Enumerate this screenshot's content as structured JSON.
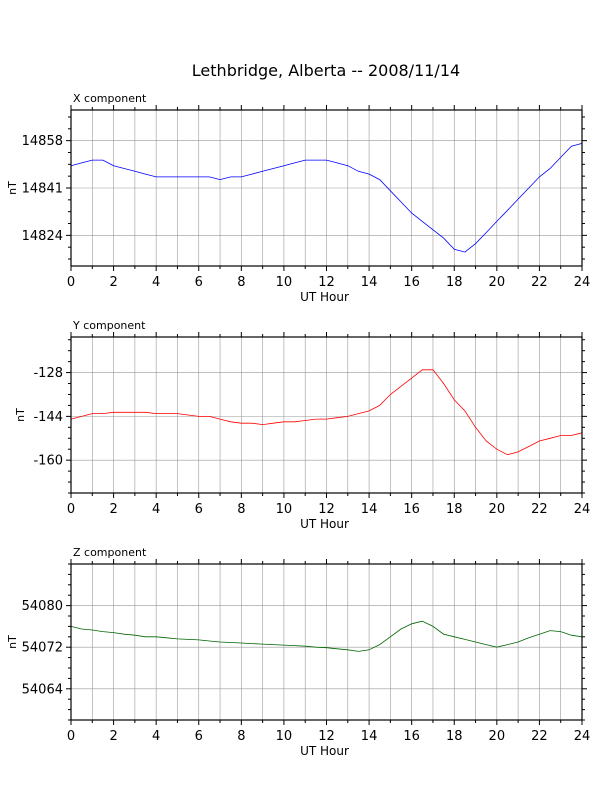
{
  "title": "Lethbridge, Alberta -- 2008/11/14",
  "colors": {
    "x": "#0000ff",
    "y": "#ff0000",
    "z": "#006400",
    "grid": "#999999",
    "axis": "#000000"
  },
  "chart_data": [
    {
      "type": "line",
      "title": "X component",
      "xlabel": "UT Hour",
      "ylabel": "nT",
      "xlim": [
        0,
        24
      ],
      "ylim": [
        14813,
        14869
      ],
      "xticks": [
        "0",
        "2",
        "4",
        "6",
        "8",
        "10",
        "12",
        "14",
        "16",
        "18",
        "20",
        "22",
        "24"
      ],
      "yticks": [
        14824,
        14841,
        14858
      ],
      "grid": true,
      "series": [
        {
          "x": [
            0,
            0.5,
            1,
            1.5,
            2,
            2.5,
            3,
            3.5,
            4,
            4.5,
            5,
            5.5,
            6,
            6.5,
            7,
            7.5,
            8,
            8.5,
            9,
            9.5,
            10,
            10.5,
            11,
            11.5,
            12,
            12.5,
            13,
            13.5,
            14,
            14.5,
            15,
            15.5,
            16,
            16.5,
            17,
            17.5,
            18,
            18.5,
            19,
            19.5,
            20,
            20.5,
            21,
            21.5,
            22,
            22.5,
            23,
            23.5,
            24
          ],
          "values": [
            14849,
            14850,
            14851,
            14851,
            14849,
            14848,
            14847,
            14846,
            14845,
            14845,
            14845,
            14845,
            14845,
            14845,
            14844,
            14845,
            14845,
            14846,
            14847,
            14848,
            14849,
            14850,
            14851,
            14851,
            14851,
            14850,
            14849,
            14847,
            14846,
            14844,
            14840,
            14836,
            14832,
            14829,
            14826,
            14823,
            14819,
            14818,
            14821,
            14825,
            14829,
            14833,
            14837,
            14841,
            14845,
            14848,
            14852,
            14856,
            14857
          ]
        }
      ]
    },
    {
      "type": "line",
      "title": "Y component",
      "xlabel": "UT Hour",
      "ylabel": "nT",
      "xlim": [
        0,
        24
      ],
      "ylim": [
        -172,
        -115
      ],
      "xticks": [
        "0",
        "2",
        "4",
        "6",
        "8",
        "10",
        "12",
        "14",
        "16",
        "18",
        "20",
        "22",
        "24"
      ],
      "yticks": [
        -128,
        -144,
        -160
      ],
      "grid": true,
      "series": [
        {
          "x": [
            0,
            0.5,
            1,
            1.5,
            2,
            2.5,
            3,
            3.5,
            4,
            4.5,
            5,
            5.5,
            6,
            6.5,
            7,
            7.5,
            8,
            8.5,
            9,
            9.5,
            10,
            10.5,
            11,
            11.5,
            12,
            12.5,
            13,
            13.5,
            14,
            14.5,
            15,
            15.5,
            16,
            16.5,
            17,
            17.5,
            18,
            18.5,
            19,
            19.5,
            20,
            20.5,
            21,
            21.5,
            22,
            22.5,
            23,
            23.5,
            24
          ],
          "values": [
            -145,
            -144,
            -143,
            -143,
            -142.5,
            -142.5,
            -142.5,
            -142.5,
            -143,
            -143,
            -143,
            -143.5,
            -144,
            -144,
            -145,
            -146,
            -146.5,
            -146.5,
            -147,
            -146.5,
            -146,
            -146,
            -145.5,
            -145,
            -145,
            -144.5,
            -144,
            -143,
            -142,
            -140,
            -136,
            -133,
            -130,
            -127,
            -127,
            -132,
            -138,
            -142,
            -148,
            -153,
            -156,
            -158,
            -157,
            -155,
            -153,
            -152,
            -151,
            -151,
            -150
          ]
        }
      ]
    },
    {
      "type": "line",
      "title": "Z component",
      "xlabel": "UT Hour",
      "ylabel": "nT",
      "xlim": [
        0,
        24
      ],
      "ylim": [
        54058,
        54088
      ],
      "xticks": [
        "0",
        "2",
        "4",
        "6",
        "8",
        "10",
        "12",
        "14",
        "16",
        "18",
        "20",
        "22",
        "24"
      ],
      "yticks": [
        54064,
        54072,
        54080
      ],
      "grid": true,
      "series": [
        {
          "x": [
            0,
            0.5,
            1,
            1.5,
            2,
            2.5,
            3,
            3.5,
            4,
            4.5,
            5,
            5.5,
            6,
            6.5,
            7,
            7.5,
            8,
            8.5,
            9,
            9.5,
            10,
            10.5,
            11,
            11.5,
            12,
            12.5,
            13,
            13.5,
            14,
            14.5,
            15,
            15.5,
            16,
            16.5,
            17,
            17.5,
            18,
            18.5,
            19,
            19.5,
            20,
            20.5,
            21,
            21.5,
            22,
            22.5,
            23,
            23.5,
            24
          ],
          "values": [
            54076,
            54075.5,
            54075.3,
            54075,
            54074.8,
            54074.5,
            54074.3,
            54074,
            54074,
            54073.8,
            54073.6,
            54073.5,
            54073.4,
            54073.2,
            54073,
            54072.9,
            54072.8,
            54072.7,
            54072.6,
            54072.5,
            54072.4,
            54072.3,
            54072.2,
            54072,
            54071.9,
            54071.7,
            54071.5,
            54071.2,
            54071.5,
            54072.5,
            54074,
            54075.5,
            54076.5,
            54077,
            54076,
            54074.5,
            54074,
            54073.5,
            54073,
            54072.5,
            54072,
            54072.5,
            54073,
            54073.8,
            54074.5,
            54075.2,
            54075,
            54074.3,
            54074
          ]
        }
      ]
    }
  ]
}
